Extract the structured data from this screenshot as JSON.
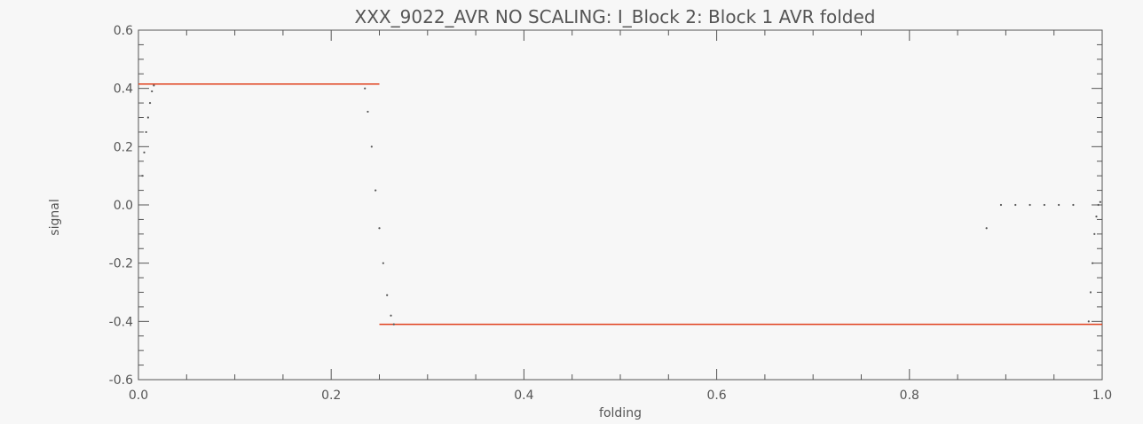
{
  "chart_data": {
    "type": "line",
    "title": "XXX_9022_AVR NO SCALING:  I_Block 2: Block 1 AVR folded",
    "xlabel": "folding",
    "ylabel": "signal",
    "xlim": [
      0.0,
      1.0
    ],
    "ylim": [
      -0.6,
      0.6
    ],
    "x_ticks": [
      "0.0",
      "0.2",
      "0.4",
      "0.6",
      "0.8",
      "1.0"
    ],
    "y_ticks": [
      "-0.6",
      "-0.4",
      "-0.2",
      "0.0",
      "0.2",
      "0.4",
      "0.6"
    ],
    "grid": false,
    "colors": {
      "model": "#e0401c",
      "data": "#555555",
      "frame": "#555555",
      "background": "#f7f7f7"
    },
    "series": [
      {
        "type": "step",
        "segments": [
          {
            "x": [
              0.0,
              0.25
            ],
            "y": [
              0.415,
              0.415
            ]
          },
          {
            "x": [
              0.25,
              1.0
            ],
            "y": [
              -0.41,
              -0.41
            ]
          }
        ]
      },
      {
        "type": "scatter",
        "x": [
          0.004,
          0.006,
          0.008,
          0.01,
          0.012,
          0.014,
          0.016,
          0.235,
          0.238,
          0.242,
          0.246,
          0.25,
          0.254,
          0.258,
          0.262,
          0.265,
          0.88,
          0.895,
          0.91,
          0.925,
          0.94,
          0.955,
          0.97,
          0.986,
          0.988,
          0.99,
          0.992,
          0.994,
          0.996,
          0.998
        ],
        "y": [
          0.1,
          0.18,
          0.25,
          0.3,
          0.35,
          0.39,
          0.41,
          0.4,
          0.32,
          0.2,
          0.05,
          -0.08,
          -0.2,
          -0.31,
          -0.38,
          -0.41,
          -0.08,
          0.0,
          0.0,
          0.0,
          0.0,
          0.0,
          0.0,
          -0.4,
          -0.3,
          -0.2,
          -0.1,
          -0.04,
          0.0,
          0.01
        ]
      }
    ]
  }
}
